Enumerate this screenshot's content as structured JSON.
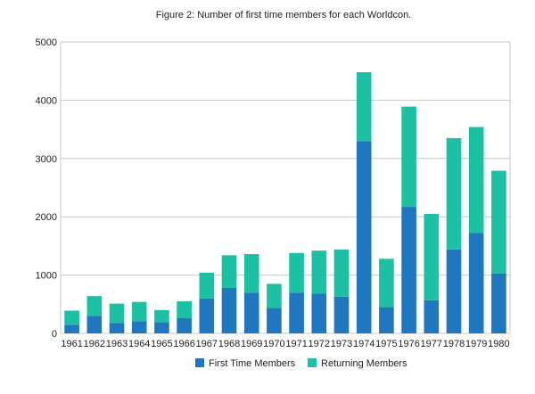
{
  "chart_data": {
    "type": "bar",
    "stacked": true,
    "title": "Figure 2: Number of first time members for each Worldcon.",
    "xlabel": "",
    "ylabel": "",
    "ylim": [
      0,
      5000
    ],
    "yticks": [
      "0",
      "1000",
      "2000",
      "3000",
      "4000",
      "5000"
    ],
    "grid": true,
    "legend_position": "bottom",
    "categories": [
      "1961",
      "1962",
      "1963",
      "1964",
      "1965",
      "1966",
      "1967",
      "1968",
      "1969",
      "1970",
      "1971",
      "1972",
      "1973",
      "1974",
      "1975",
      "1976",
      "1977",
      "1978",
      "1979",
      "1980"
    ],
    "series": [
      {
        "name": "First Time Members",
        "color": "#1f77c0",
        "values": [
          150,
          300,
          180,
          210,
          190,
          260,
          600,
          780,
          700,
          440,
          700,
          680,
          630,
          3300,
          450,
          2170,
          570,
          1440,
          1720,
          1030
        ]
      },
      {
        "name": "Returning Members",
        "color": "#1cc1a3",
        "values": [
          240,
          340,
          330,
          330,
          210,
          290,
          440,
          560,
          660,
          410,
          680,
          740,
          810,
          1180,
          830,
          1720,
          1480,
          1910,
          1820,
          1760
        ]
      }
    ]
  }
}
